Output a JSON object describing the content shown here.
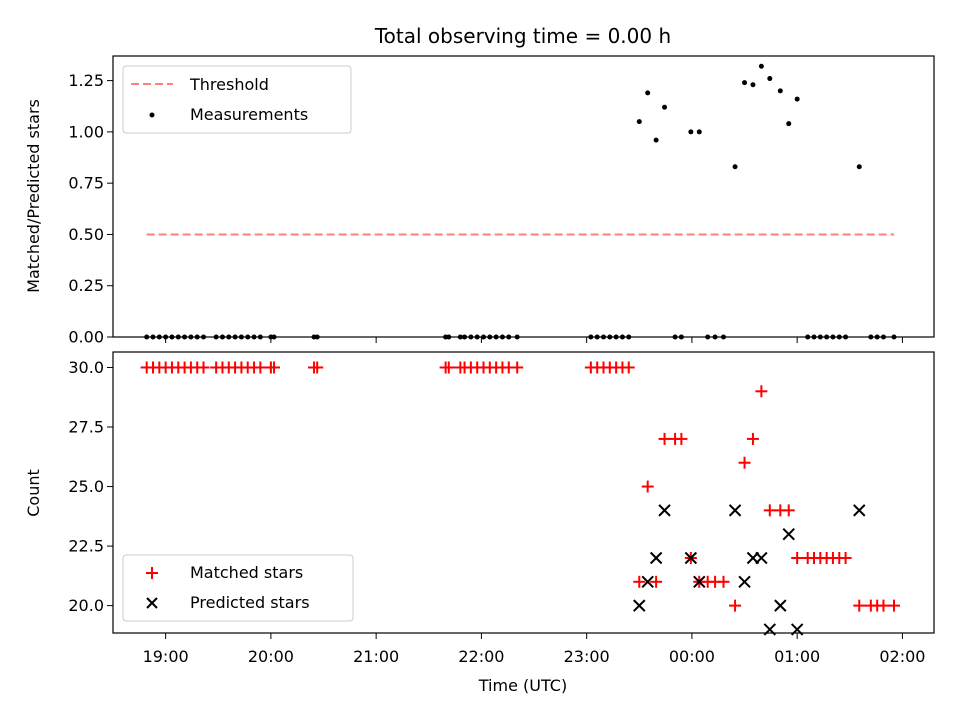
{
  "chart_data": {
    "title": "Total observing time = 0.00 h",
    "xlabel": "Time (UTC)",
    "xaxis_hours": [
      19,
      20,
      21,
      22,
      23,
      24,
      25,
      26
    ],
    "xaxis_tick_labels": [
      "19:00",
      "20:00",
      "21:00",
      "22:00",
      "23:00",
      "00:00",
      "01:00",
      "02:00"
    ],
    "xlim_hours": [
      18.5,
      26.3
    ],
    "panels": [
      {
        "type": "scatter",
        "ylabel": "Matched/Predicted stars",
        "ylim": [
          0,
          1.37
        ],
        "yticks": [
          0.0,
          0.25,
          0.5,
          0.75,
          1.0,
          1.25
        ],
        "ytick_labels": [
          "0.00",
          "0.25",
          "0.50",
          "0.75",
          "1.00",
          "1.25"
        ],
        "legend_position": "upper-left",
        "threshold": {
          "name": "Threshold",
          "color": "#ff7f7f",
          "value": 0.5,
          "x_range_hours": [
            18.82,
            25.92
          ]
        },
        "measurements": {
          "name": "Measurements",
          "color": "#000000",
          "points": [
            [
              18.82,
              0
            ],
            [
              18.88,
              0
            ],
            [
              18.94,
              0
            ],
            [
              19.0,
              0
            ],
            [
              19.06,
              0
            ],
            [
              19.12,
              0
            ],
            [
              19.18,
              0
            ],
            [
              19.24,
              0
            ],
            [
              19.3,
              0
            ],
            [
              19.36,
              0
            ],
            [
              19.48,
              0
            ],
            [
              19.54,
              0
            ],
            [
              19.6,
              0
            ],
            [
              19.66,
              0
            ],
            [
              19.72,
              0
            ],
            [
              19.78,
              0
            ],
            [
              19.84,
              0
            ],
            [
              19.9,
              0
            ],
            [
              20.0,
              0
            ],
            [
              20.03,
              0
            ],
            [
              20.41,
              0
            ],
            [
              20.44,
              0
            ],
            [
              21.66,
              0
            ],
            [
              21.69,
              0
            ],
            [
              21.8,
              0
            ],
            [
              21.84,
              0
            ],
            [
              21.9,
              0
            ],
            [
              21.96,
              0
            ],
            [
              22.02,
              0
            ],
            [
              22.08,
              0
            ],
            [
              22.14,
              0
            ],
            [
              22.2,
              0
            ],
            [
              22.26,
              0
            ],
            [
              22.34,
              0
            ],
            [
              23.04,
              0
            ],
            [
              23.1,
              0
            ],
            [
              23.16,
              0
            ],
            [
              23.22,
              0
            ],
            [
              23.28,
              0
            ],
            [
              23.34,
              0
            ],
            [
              23.4,
              0
            ],
            [
              23.5,
              1.05
            ],
            [
              23.58,
              1.19
            ],
            [
              23.66,
              0.96
            ],
            [
              23.74,
              1.12
            ],
            [
              23.84,
              0
            ],
            [
              23.9,
              0
            ],
            [
              23.99,
              1.0
            ],
            [
              24.07,
              1.0
            ],
            [
              24.15,
              0
            ],
            [
              24.22,
              0
            ],
            [
              24.3,
              0
            ],
            [
              24.41,
              0.83
            ],
            [
              24.5,
              1.24
            ],
            [
              24.58,
              1.23
            ],
            [
              24.66,
              1.32
            ],
            [
              24.74,
              1.26
            ],
            [
              24.84,
              1.2
            ],
            [
              24.92,
              1.04
            ],
            [
              25.0,
              1.16
            ],
            [
              25.1,
              0
            ],
            [
              25.16,
              0
            ],
            [
              25.22,
              0
            ],
            [
              25.28,
              0
            ],
            [
              25.34,
              0
            ],
            [
              25.4,
              0
            ],
            [
              25.46,
              0
            ],
            [
              25.59,
              0.83
            ],
            [
              25.7,
              0
            ],
            [
              25.76,
              0
            ],
            [
              25.82,
              0
            ],
            [
              25.92,
              0
            ]
          ]
        }
      },
      {
        "type": "scatter",
        "ylabel": "Count",
        "ylim": [
          18.85,
          30.65
        ],
        "yticks": [
          20.0,
          22.5,
          25.0,
          27.5,
          30.0
        ],
        "ytick_labels": [
          "20.0",
          "22.5",
          "25.0",
          "27.5",
          "30.0"
        ],
        "legend_position": "lower-left",
        "series": [
          {
            "name": "Matched stars",
            "marker": "plus",
            "color": "#ff0000",
            "points": [
              [
                18.82,
                30
              ],
              [
                18.88,
                30
              ],
              [
                18.94,
                30
              ],
              [
                19.0,
                30
              ],
              [
                19.06,
                30
              ],
              [
                19.12,
                30
              ],
              [
                19.18,
                30
              ],
              [
                19.24,
                30
              ],
              [
                19.3,
                30
              ],
              [
                19.36,
                30
              ],
              [
                19.48,
                30
              ],
              [
                19.54,
                30
              ],
              [
                19.6,
                30
              ],
              [
                19.66,
                30
              ],
              [
                19.72,
                30
              ],
              [
                19.78,
                30
              ],
              [
                19.84,
                30
              ],
              [
                19.9,
                30
              ],
              [
                20.0,
                30
              ],
              [
                20.03,
                30
              ],
              [
                20.41,
                30
              ],
              [
                20.44,
                30
              ],
              [
                21.66,
                30
              ],
              [
                21.69,
                30
              ],
              [
                21.8,
                30
              ],
              [
                21.84,
                30
              ],
              [
                21.9,
                30
              ],
              [
                21.96,
                30
              ],
              [
                22.02,
                30
              ],
              [
                22.08,
                30
              ],
              [
                22.14,
                30
              ],
              [
                22.2,
                30
              ],
              [
                22.26,
                30
              ],
              [
                22.34,
                30
              ],
              [
                23.04,
                30
              ],
              [
                23.1,
                30
              ],
              [
                23.16,
                30
              ],
              [
                23.22,
                30
              ],
              [
                23.28,
                30
              ],
              [
                23.34,
                30
              ],
              [
                23.4,
                30
              ],
              [
                23.5,
                21
              ],
              [
                23.58,
                25
              ],
              [
                23.66,
                21
              ],
              [
                23.74,
                27
              ],
              [
                23.84,
                27
              ],
              [
                23.9,
                27
              ],
              [
                23.99,
                22
              ],
              [
                24.07,
                21
              ],
              [
                24.15,
                21
              ],
              [
                24.22,
                21
              ],
              [
                24.3,
                21
              ],
              [
                24.41,
                20
              ],
              [
                24.5,
                26
              ],
              [
                24.58,
                27
              ],
              [
                24.66,
                29
              ],
              [
                24.74,
                24
              ],
              [
                24.84,
                24
              ],
              [
                24.92,
                24
              ],
              [
                25.0,
                22
              ],
              [
                25.1,
                22
              ],
              [
                25.16,
                22
              ],
              [
                25.22,
                22
              ],
              [
                25.28,
                22
              ],
              [
                25.34,
                22
              ],
              [
                25.4,
                22
              ],
              [
                25.46,
                22
              ],
              [
                25.59,
                20
              ],
              [
                25.7,
                20
              ],
              [
                25.76,
                20
              ],
              [
                25.82,
                20
              ],
              [
                25.92,
                20
              ]
            ]
          },
          {
            "name": "Predicted stars",
            "marker": "x",
            "color": "#000000",
            "points": [
              [
                23.5,
                20
              ],
              [
                23.58,
                21
              ],
              [
                23.66,
                22
              ],
              [
                23.74,
                24
              ],
              [
                23.99,
                22
              ],
              [
                24.07,
                21
              ],
              [
                24.41,
                24
              ],
              [
                24.5,
                21
              ],
              [
                24.58,
                22
              ],
              [
                24.66,
                22
              ],
              [
                24.74,
                19
              ],
              [
                24.84,
                20
              ],
              [
                24.92,
                23
              ],
              [
                25.0,
                19
              ],
              [
                25.59,
                24
              ]
            ]
          }
        ]
      }
    ]
  }
}
